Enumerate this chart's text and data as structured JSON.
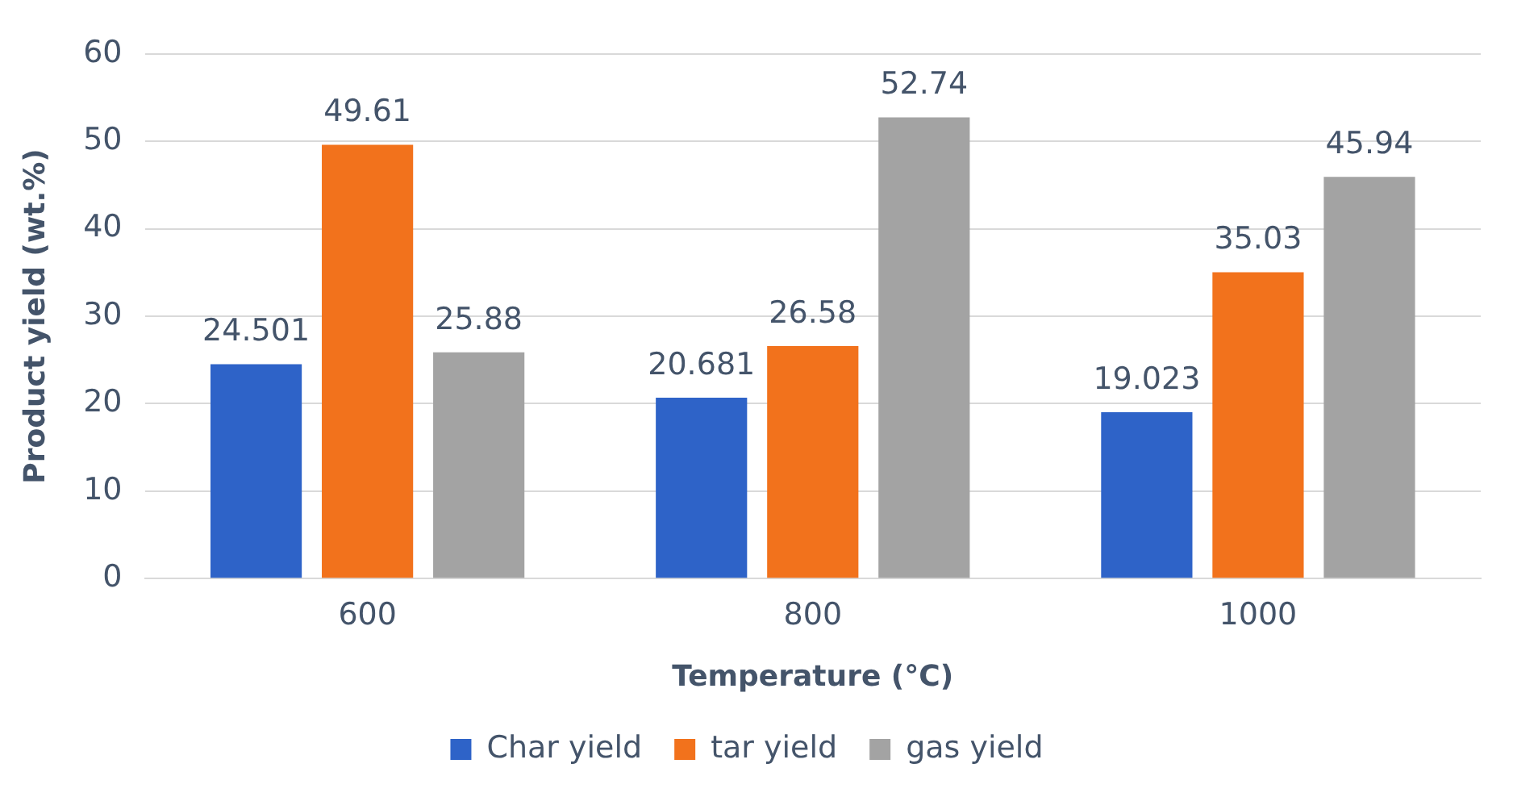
{
  "chart_data": {
    "type": "bar",
    "xlabel": "Temperature (°C)",
    "ylabel": "Product yield (wt.%)",
    "categories": [
      "600",
      "800",
      "1000"
    ],
    "series": [
      {
        "name": "Char yield",
        "color": "#2e63c8",
        "values": [
          24.501,
          20.681,
          19.023
        ]
      },
      {
        "name": "tar yield",
        "color": "#f2721c",
        "values": [
          49.61,
          26.58,
          35.03
        ]
      },
      {
        "name": "gas yield",
        "color": "#a3a3a3",
        "values": [
          25.88,
          52.74,
          45.94
        ]
      }
    ],
    "ylim": [
      0,
      60
    ],
    "yticks": [
      0,
      10,
      20,
      30,
      40,
      50,
      60
    ],
    "grid": "y",
    "legend": "bottom",
    "data_labels": true
  }
}
